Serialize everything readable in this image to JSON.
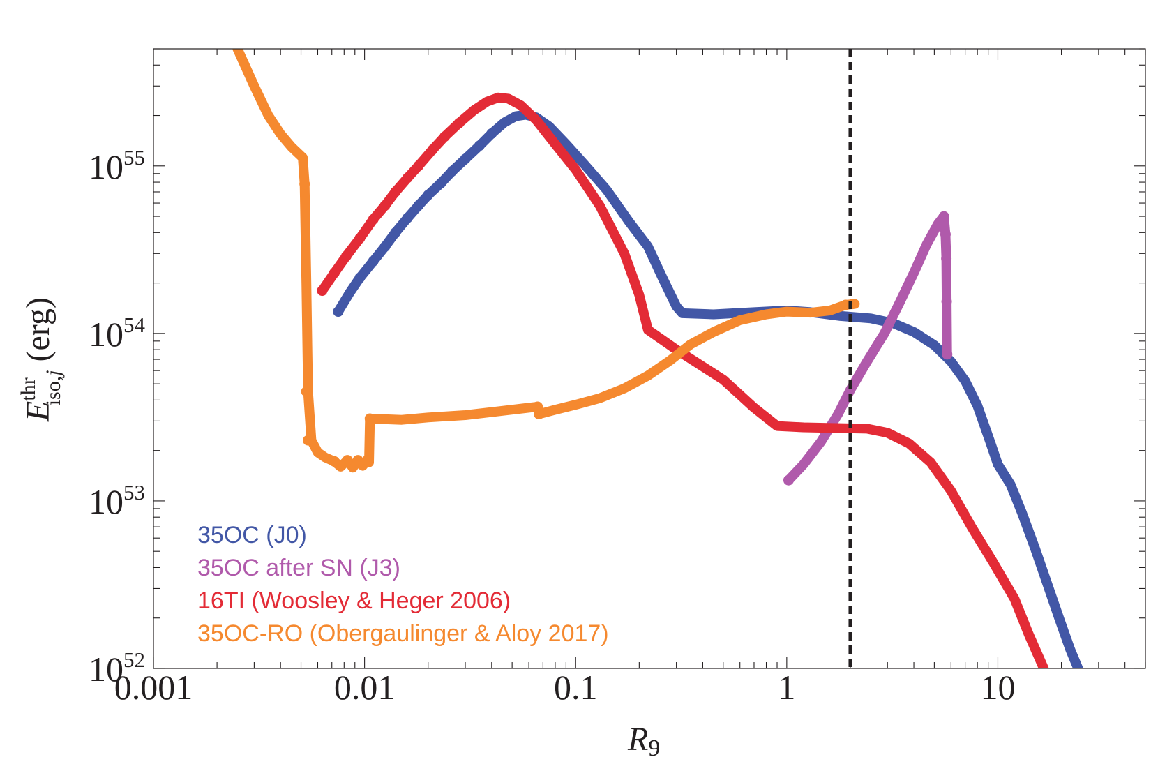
{
  "chart_data": {
    "type": "line",
    "xlabel": {
      "main": "R",
      "sub": "9"
    },
    "ylabel": {
      "main": "E",
      "sup": "thr",
      "sub": "iso,",
      "sub_italic": "j",
      "unit": "(erg)"
    },
    "xscale": "log",
    "yscale": "log",
    "xlim": [
      0.001,
      50
    ],
    "ylim": [
      1e+52,
      5e+55
    ],
    "x_ticks": [
      {
        "value": 0.001,
        "label": "0.001"
      },
      {
        "value": 0.01,
        "label": "0.01"
      },
      {
        "value": 0.1,
        "label": "0.1"
      },
      {
        "value": 1,
        "label": "1"
      },
      {
        "value": 10,
        "label": "10"
      }
    ],
    "y_ticks": [
      {
        "value": 1e+52,
        "base": "10",
        "exp": "52"
      },
      {
        "value": 1e+53,
        "base": "10",
        "exp": "53"
      },
      {
        "value": 1e+54,
        "base": "10",
        "exp": "54"
      },
      {
        "value": 1e+55,
        "base": "10",
        "exp": "55"
      }
    ],
    "grid": false,
    "legend_position": "bottom-left",
    "vertical_line": {
      "x": 2.0,
      "style": "dashed",
      "color": "#231f20"
    },
    "series": [
      {
        "name": "35OC (J0)",
        "color": "#4257a6",
        "points": [
          [
            0.0075,
            1.35e+54
          ],
          [
            0.0085,
            1.75e+54
          ],
          [
            0.0095,
            2.15e+54
          ],
          [
            0.011,
            2.7e+54
          ],
          [
            0.0125,
            3.3e+54
          ],
          [
            0.014,
            4e+54
          ],
          [
            0.016,
            4.9e+54
          ],
          [
            0.018,
            5.8e+54
          ],
          [
            0.02,
            6.7e+54
          ],
          [
            0.023,
            7.9e+54
          ],
          [
            0.026,
            9.3e+54
          ],
          [
            0.03,
            1.1e+55
          ],
          [
            0.035,
            1.32e+55
          ],
          [
            0.04,
            1.56e+55
          ],
          [
            0.046,
            1.82e+55
          ],
          [
            0.052,
            1.98e+55
          ],
          [
            0.058,
            2.02e+55
          ],
          [
            0.065,
            1.95e+55
          ],
          [
            0.075,
            1.72e+55
          ],
          [
            0.09,
            1.35e+55
          ],
          [
            0.11,
            1.02e+55
          ],
          [
            0.14,
            7.2e+54
          ],
          [
            0.18,
            4.6e+54
          ],
          [
            0.22,
            3.3e+54
          ],
          [
            0.26,
            2.1e+54
          ],
          [
            0.3,
            1.45e+54
          ],
          [
            0.32,
            1.32e+54
          ],
          [
            0.45,
            1.3e+54
          ],
          [
            0.7,
            1.34e+54
          ],
          [
            1.0,
            1.37e+54
          ],
          [
            1.3,
            1.34e+54
          ],
          [
            1.8,
            1.27e+54
          ],
          [
            2.5,
            1.23e+54
          ],
          [
            3.2,
            1.15e+54
          ],
          [
            4.0,
            1.02e+54
          ],
          [
            5.0,
            8.5e+53
          ],
          [
            6.0,
            6.8e+53
          ],
          [
            7.0,
            5.2e+53
          ],
          [
            8.0,
            3.7e+53
          ],
          [
            9.2,
            2.25e+53
          ],
          [
            10.0,
            1.65e+53
          ],
          [
            11.5,
            1.25e+53
          ],
          [
            13.0,
            8.5e+52
          ],
          [
            15.0,
            5.2e+52
          ],
          [
            17.0,
            3.3e+52
          ],
          [
            19.5,
            2e+52
          ],
          [
            22.0,
            1.3e+52
          ],
          [
            24.0,
            1e+52
          ]
        ],
        "markers": [
          [
            0.0075,
            1.35e+54
          ],
          [
            0.0095,
            2.15e+54
          ],
          [
            0.011,
            2.7e+54
          ],
          [
            0.0125,
            3.3e+54
          ],
          [
            0.014,
            4e+54
          ],
          [
            0.016,
            4.9e+54
          ],
          [
            0.018,
            5.8e+54
          ],
          [
            0.02,
            6.7e+54
          ],
          [
            0.023,
            7.9e+54
          ],
          [
            0.026,
            9.3e+54
          ],
          [
            0.03,
            1.1e+55
          ],
          [
            0.035,
            1.32e+55
          ],
          [
            0.04,
            1.56e+55
          ]
        ]
      },
      {
        "name": "35OC after SN (J3)",
        "color": "#b05aab",
        "points": [
          [
            1.02,
            1.33e+53
          ],
          [
            1.2,
            1.65e+53
          ],
          [
            1.45,
            2.25e+53
          ],
          [
            1.75,
            3.3e+53
          ],
          [
            2.0,
            4.6e+53
          ],
          [
            2.4,
            6.8e+53
          ],
          [
            2.9,
            1e+54
          ],
          [
            3.4,
            1.5e+54
          ],
          [
            4.0,
            2.3e+54
          ],
          [
            4.6,
            3.4e+54
          ],
          [
            5.2,
            4.5e+54
          ],
          [
            5.55,
            5e+54
          ],
          [
            5.65,
            3.9e+54
          ],
          [
            5.7,
            2.8e+54
          ],
          [
            5.72,
            1.55e+54
          ],
          [
            5.75,
            7.5e+53
          ]
        ],
        "markers": [
          [
            1.02,
            1.33e+53
          ],
          [
            5.55,
            5e+54
          ],
          [
            5.65,
            3.9e+54
          ],
          [
            5.7,
            2.8e+54
          ],
          [
            5.72,
            1.55e+54
          ],
          [
            5.75,
            7.5e+53
          ]
        ]
      },
      {
        "name": "16TI (Woosley & Heger 2006)",
        "color": "#e32b36",
        "points": [
          [
            0.0063,
            1.8e+54
          ],
          [
            0.0072,
            2.3e+54
          ],
          [
            0.0082,
            2.9e+54
          ],
          [
            0.0095,
            3.7e+54
          ],
          [
            0.011,
            4.8e+54
          ],
          [
            0.0125,
            5.8e+54
          ],
          [
            0.014,
            7e+54
          ],
          [
            0.016,
            8.5e+54
          ],
          [
            0.018,
            1e+55
          ],
          [
            0.021,
            1.25e+55
          ],
          [
            0.024,
            1.5e+55
          ],
          [
            0.028,
            1.8e+55
          ],
          [
            0.033,
            2.15e+55
          ],
          [
            0.038,
            2.42e+55
          ],
          [
            0.043,
            2.56e+55
          ],
          [
            0.048,
            2.52e+55
          ],
          [
            0.055,
            2.3e+55
          ],
          [
            0.065,
            1.88e+55
          ],
          [
            0.08,
            1.35e+55
          ],
          [
            0.1,
            9.5e+54
          ],
          [
            0.13,
            5.8e+54
          ],
          [
            0.17,
            3e+54
          ],
          [
            0.2,
            1.7e+54
          ],
          [
            0.22,
            1.05e+54
          ],
          [
            0.3,
            8e+53
          ],
          [
            0.5,
            5.3e+53
          ],
          [
            0.7,
            3.6e+53
          ],
          [
            0.9,
            2.8e+53
          ],
          [
            1.2,
            2.75e+53
          ],
          [
            1.8,
            2.72e+53
          ],
          [
            2.4,
            2.7e+53
          ],
          [
            3.0,
            2.55e+53
          ],
          [
            3.8,
            2.2e+53
          ],
          [
            4.8,
            1.7e+53
          ],
          [
            6.0,
            1.15e+53
          ],
          [
            7.5,
            7e+52
          ],
          [
            9.5,
            4.3e+52
          ],
          [
            12.0,
            2.6e+52
          ],
          [
            14.0,
            1.6e+52
          ],
          [
            16.5,
            1e+52
          ]
        ],
        "markers": [
          [
            0.0063,
            1.8e+54
          ],
          [
            0.0072,
            2.3e+54
          ],
          [
            0.0082,
            2.9e+54
          ],
          [
            0.0095,
            3.7e+54
          ],
          [
            0.011,
            4.8e+54
          ],
          [
            0.0125,
            5.8e+54
          ],
          [
            0.014,
            7e+54
          ],
          [
            0.016,
            8.5e+54
          ],
          [
            0.018,
            1e+55
          ],
          [
            0.021,
            1.25e+55
          ],
          [
            0.024,
            1.5e+55
          ],
          [
            0.028,
            1.8e+55
          ]
        ]
      },
      {
        "name": "35OC-RO (Obergaulinger & Aloy 2017)",
        "color": "#f5892f",
        "points": [
          [
            0.0025,
            5e+55
          ],
          [
            0.003,
            3e+55
          ],
          [
            0.0035,
            2e+55
          ],
          [
            0.004,
            1.55e+55
          ],
          [
            0.0045,
            1.3e+55
          ],
          [
            0.0051,
            1.12e+55
          ],
          [
            0.0052,
            7.8e+54
          ],
          [
            0.0053,
            2e+54
          ],
          [
            0.0054,
            4.5e+53
          ],
          [
            0.0056,
            2.3e+53
          ],
          [
            0.006,
            1.95e+53
          ],
          [
            0.0065,
            1.82e+53
          ],
          [
            0.0072,
            1.72e+53
          ],
          [
            0.0077,
            1.6e+53
          ],
          [
            0.0083,
            1.75e+53
          ],
          [
            0.0088,
            1.58e+53
          ],
          [
            0.0093,
            1.75e+53
          ],
          [
            0.0098,
            1.62e+53
          ],
          [
            0.0103,
            1.75e+53
          ],
          [
            0.0105,
            1.7e+53
          ],
          [
            0.0106,
            3.1e+53
          ],
          [
            0.015,
            3.05e+53
          ],
          [
            0.02,
            3.15e+53
          ],
          [
            0.03,
            3.25e+53
          ],
          [
            0.045,
            3.45e+53
          ],
          [
            0.066,
            3.65e+53
          ],
          [
            0.067,
            3.3e+53
          ],
          [
            0.08,
            3.5e+53
          ],
          [
            0.1,
            3.75e+53
          ],
          [
            0.13,
            4.1e+53
          ],
          [
            0.17,
            4.7e+53
          ],
          [
            0.22,
            5.6e+53
          ],
          [
            0.28,
            6.9e+53
          ],
          [
            0.35,
            8.6e+53
          ],
          [
            0.45,
            1.02e+54
          ],
          [
            0.6,
            1.2e+54
          ],
          [
            0.8,
            1.3e+54
          ],
          [
            1.0,
            1.35e+54
          ],
          [
            1.3,
            1.33e+54
          ],
          [
            1.6,
            1.37e+54
          ],
          [
            1.9,
            1.48e+54
          ],
          [
            2.1,
            1.5e+54
          ]
        ],
        "markers": [
          [
            0.0052,
            7.8e+54
          ],
          [
            0.0053,
            4.5e+53
          ],
          [
            0.0054,
            2.3e+53
          ],
          [
            0.0072,
            1.72e+53
          ],
          [
            0.0083,
            1.75e+53
          ],
          [
            0.0093,
            1.75e+53
          ],
          [
            0.0103,
            1.75e+53
          ],
          [
            0.0106,
            3.1e+53
          ],
          [
            0.066,
            3.65e+53
          ],
          [
            0.067,
            3.3e+53
          ],
          [
            1.9,
            1.48e+54
          ],
          [
            2.05,
            1.5e+54
          ]
        ]
      }
    ]
  }
}
